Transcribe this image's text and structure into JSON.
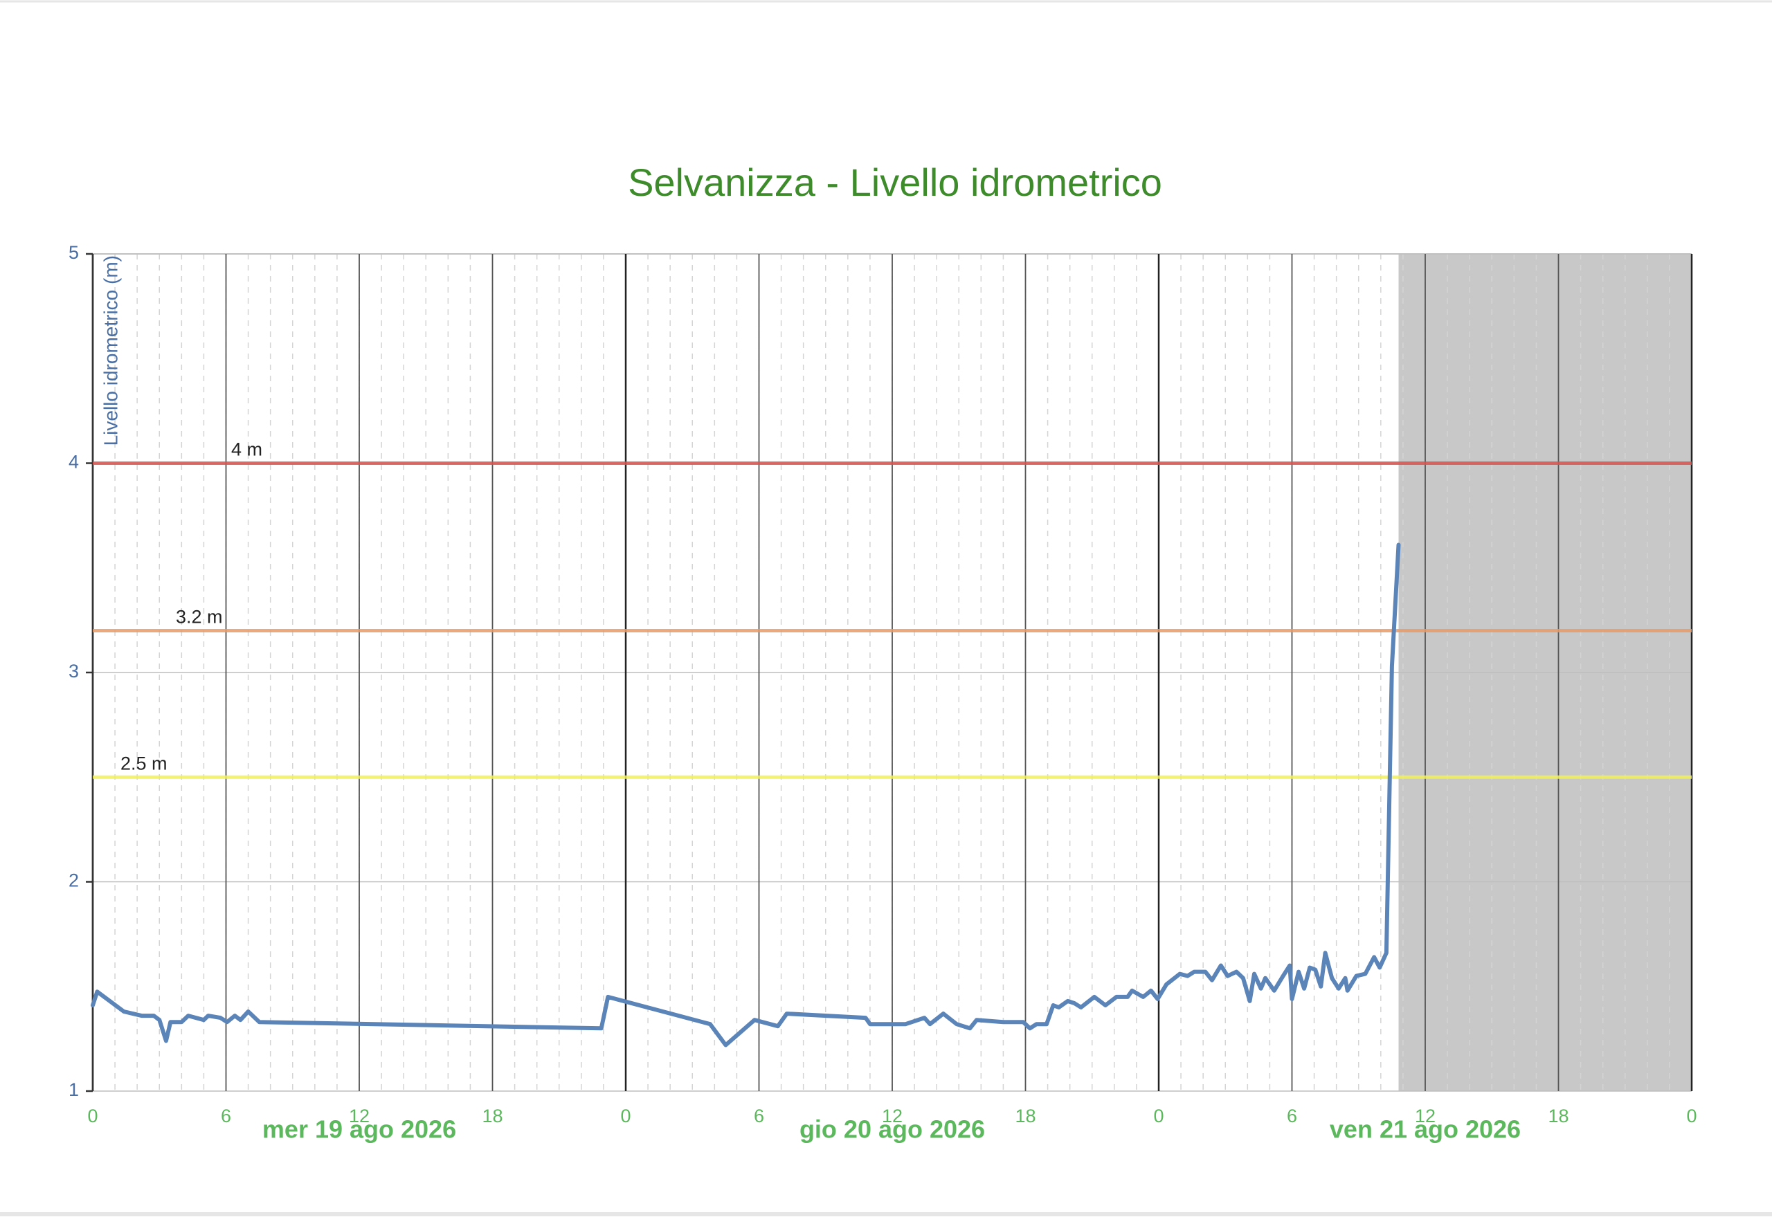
{
  "chart_data": {
    "type": "line",
    "title": "Selvanizza - Livello idrometrico",
    "ylabel": "Livello idrometrico (m)",
    "xlim": [
      0,
      72
    ],
    "xticks": [
      0,
      6,
      12,
      18,
      {
        "value": 24,
        "label": "0"
      },
      {
        "value": 30,
        "label": "6"
      },
      {
        "value": 36,
        "label": "12"
      },
      {
        "value": 42,
        "label": "18"
      },
      {
        "value": 48,
        "label": "0"
      },
      {
        "value": 54,
        "label": "6"
      },
      {
        "value": 60,
        "label": "12"
      },
      {
        "value": 66,
        "label": "18"
      },
      {
        "value": 72,
        "label": "0"
      }
    ],
    "day_labels": [
      {
        "value": 12,
        "label": "mer 19 ago 2026"
      },
      {
        "value": 36,
        "label": "gio 20 ago 2026"
      },
      {
        "value": 60,
        "label": "ven 21 ago 2026"
      }
    ],
    "ylim": [
      1,
      5
    ],
    "yticks": [
      1,
      2,
      3,
      4,
      5
    ],
    "grid": true,
    "shaded_region": [
      58.8,
      72
    ],
    "thresholds": [
      {
        "value": 4,
        "label": "4 m",
        "color": "#d9534f"
      },
      {
        "value": 3.2,
        "label": "3.2 m",
        "color": "#e89a6a"
      },
      {
        "value": 2.5,
        "label": "2.5 m",
        "color": "#f2f05a"
      }
    ],
    "series": [
      {
        "color": "#5b84b8",
        "x": [
          0,
          0.2,
          1.4,
          1.8,
          2.2,
          2.75,
          3.0,
          3.3,
          3.5,
          4.0,
          4.3,
          5.0,
          5.2,
          5.75,
          6.05,
          6.4,
          6.65,
          7.0,
          7.5,
          22.9,
          23.2,
          27.8,
          28.5,
          29.8,
          30.85,
          31.25,
          34.8,
          35.0,
          36.6,
          37.45,
          37.7,
          38.3,
          38.9,
          39.5,
          39.8,
          41.0,
          41.9,
          42.2,
          42.5,
          42.95,
          43.25,
          43.5,
          43.9,
          44.2,
          44.5,
          45.1,
          45.6,
          46.1,
          46.6,
          46.8,
          47.3,
          47.65,
          47.95,
          48.35,
          48.95,
          49.3,
          49.6,
          50.1,
          50.4,
          50.8,
          51.1,
          51.5,
          51.8,
          52.1,
          52.3,
          52.6,
          52.8,
          53.2,
          53.6,
          53.9,
          54.0,
          54.3,
          54.55,
          54.8,
          55.05,
          55.3,
          55.5,
          55.8,
          56.1,
          56.4,
          56.5,
          56.9,
          57.3,
          57.7,
          57.95,
          58.25,
          58.5,
          58.8
        ],
        "values": [
          1.41,
          1.475,
          1.38,
          1.37,
          1.36,
          1.36,
          1.34,
          1.24,
          1.33,
          1.33,
          1.36,
          1.34,
          1.36,
          1.35,
          1.33,
          1.36,
          1.34,
          1.38,
          1.33,
          1.3,
          1.45,
          1.32,
          1.22,
          1.34,
          1.31,
          1.37,
          1.35,
          1.32,
          1.32,
          1.35,
          1.32,
          1.37,
          1.32,
          1.3,
          1.34,
          1.33,
          1.33,
          1.3,
          1.32,
          1.32,
          1.41,
          1.4,
          1.43,
          1.42,
          1.4,
          1.45,
          1.41,
          1.45,
          1.45,
          1.48,
          1.45,
          1.48,
          1.44,
          1.51,
          1.56,
          1.55,
          1.57,
          1.57,
          1.53,
          1.6,
          1.55,
          1.57,
          1.54,
          1.43,
          1.56,
          1.49,
          1.54,
          1.48,
          1.55,
          1.6,
          1.44,
          1.57,
          1.49,
          1.59,
          1.58,
          1.5,
          1.66,
          1.54,
          1.49,
          1.54,
          1.48,
          1.55,
          1.56,
          1.64,
          1.59,
          1.66,
          3.03,
          3.61
        ]
      }
    ]
  }
}
